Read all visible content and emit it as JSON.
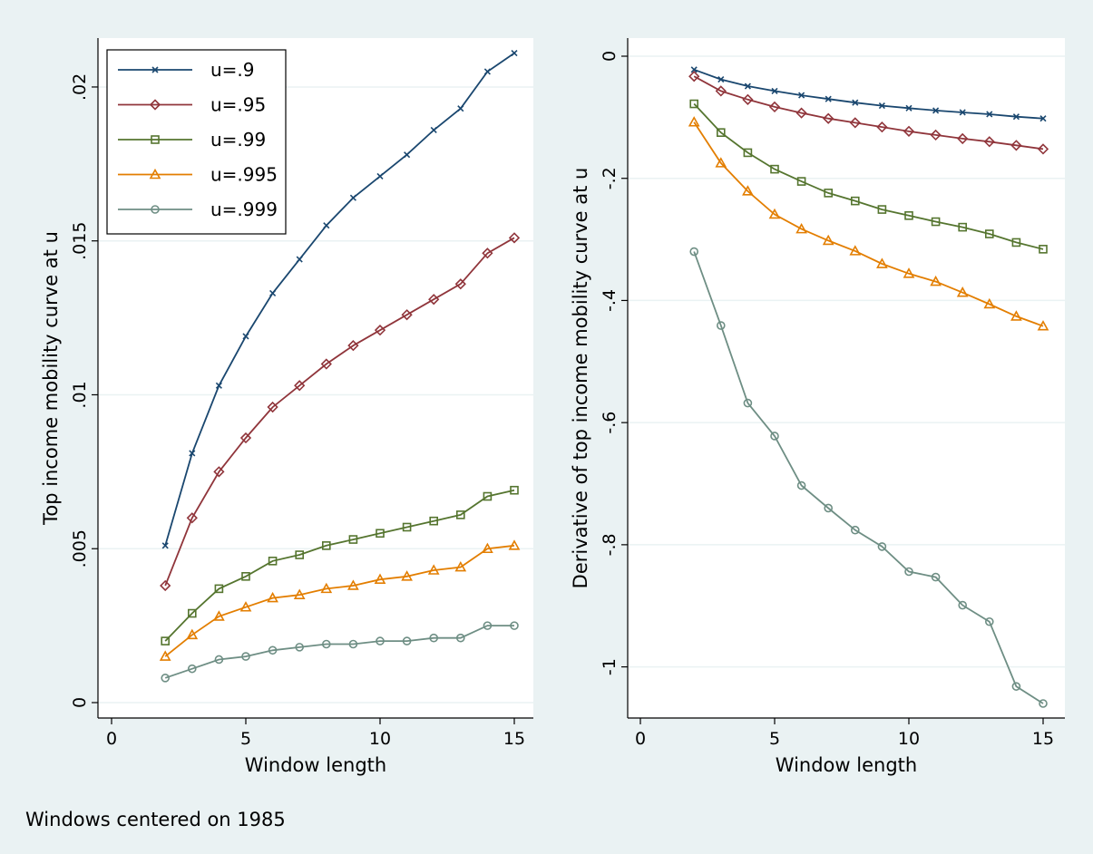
{
  "note": "Windows centered on 1985",
  "colors": {
    "background": "#eaf2f3",
    "plot_background": "#ffffff",
    "grid": "#eaf2f3",
    "u_9": "#1a476f",
    "u_95": "#90353b",
    "u_99": "#55752f",
    "u_995": "#e37e00",
    "u_999": "#6e8e84"
  },
  "chart_data": [
    {
      "type": "line",
      "title": "",
      "xlabel": "Window length",
      "ylabel": "Top income mobility curve at u",
      "xlim": [
        0,
        15
      ],
      "ylim": [
        0,
        0.021
      ],
      "x_ticks": [
        0,
        5,
        10,
        15
      ],
      "y_ticks": [
        0,
        0.005,
        0.01,
        0.015,
        0.02
      ],
      "y_tick_labels": [
        "0",
        ".005",
        ".01",
        ".015",
        ".02"
      ],
      "grid": true,
      "legend": "top-left",
      "x": [
        2,
        3,
        4,
        5,
        6,
        7,
        8,
        9,
        10,
        11,
        12,
        13,
        14,
        15
      ],
      "series": [
        {
          "name": "u=.9",
          "color": "#1a476f",
          "marker": "x",
          "values": [
            0.0051,
            0.0081,
            0.0103,
            0.0119,
            0.0133,
            0.0144,
            0.0155,
            0.0164,
            0.0171,
            0.0178,
            0.0186,
            0.0193,
            0.0205,
            0.0211
          ]
        },
        {
          "name": "u=.95",
          "color": "#90353b",
          "marker": "diamond",
          "values": [
            0.0038,
            0.006,
            0.0075,
            0.0086,
            0.0096,
            0.0103,
            0.011,
            0.0116,
            0.0121,
            0.0126,
            0.0131,
            0.0136,
            0.0146,
            0.0151
          ]
        },
        {
          "name": "u=.99",
          "color": "#55752f",
          "marker": "square",
          "values": [
            0.002,
            0.0029,
            0.0037,
            0.0041,
            0.0046,
            0.0048,
            0.0051,
            0.0053,
            0.0055,
            0.0057,
            0.0059,
            0.0061,
            0.0067,
            0.0069
          ]
        },
        {
          "name": "u=.995",
          "color": "#e37e00",
          "marker": "triangle",
          "values": [
            0.0015,
            0.0022,
            0.0028,
            0.0031,
            0.0034,
            0.0035,
            0.0037,
            0.0038,
            0.004,
            0.0041,
            0.0043,
            0.0044,
            0.005,
            0.0051
          ]
        },
        {
          "name": "u=.999",
          "color": "#6e8e84",
          "marker": "circle",
          "values": [
            0.0008,
            0.0011,
            0.0014,
            0.0015,
            0.0017,
            0.0018,
            0.0019,
            0.0019,
            0.002,
            0.002,
            0.0021,
            0.0021,
            0.0025,
            0.0025
          ]
        }
      ]
    },
    {
      "type": "line",
      "title": "",
      "xlabel": "Window length",
      "ylabel": "Derivative of top income mobility curve at u",
      "xlim": [
        0,
        15
      ],
      "ylim": [
        -1.06,
        0
      ],
      "x_ticks": [
        0,
        5,
        10,
        15
      ],
      "y_ticks": [
        0,
        -0.2,
        -0.4,
        -0.6,
        -0.8,
        -1
      ],
      "y_tick_labels": [
        "0",
        "-.2",
        "-.4",
        "-.6",
        "-.8",
        "-1"
      ],
      "grid": true,
      "x": [
        2,
        3,
        4,
        5,
        6,
        7,
        8,
        9,
        10,
        11,
        12,
        13,
        14,
        15
      ],
      "series": [
        {
          "name": "u=.9",
          "color": "#1a476f",
          "marker": "x",
          "values": [
            -0.022,
            -0.038,
            -0.049,
            -0.057,
            -0.064,
            -0.07,
            -0.076,
            -0.081,
            -0.085,
            -0.089,
            -0.092,
            -0.095,
            -0.099,
            -0.102
          ]
        },
        {
          "name": "u=.95",
          "color": "#90353b",
          "marker": "diamond",
          "values": [
            -0.033,
            -0.057,
            -0.071,
            -0.083,
            -0.093,
            -0.102,
            -0.109,
            -0.116,
            -0.123,
            -0.129,
            -0.135,
            -0.14,
            -0.146,
            -0.152
          ]
        },
        {
          "name": "u=.99",
          "color": "#55752f",
          "marker": "square",
          "values": [
            -0.078,
            -0.125,
            -0.158,
            -0.185,
            -0.205,
            -0.224,
            -0.237,
            -0.251,
            -0.261,
            -0.271,
            -0.28,
            -0.291,
            -0.305,
            -0.316
          ]
        },
        {
          "name": "u=.995",
          "color": "#e37e00",
          "marker": "triangle",
          "values": [
            -0.108,
            -0.175,
            -0.221,
            -0.259,
            -0.283,
            -0.302,
            -0.319,
            -0.34,
            -0.356,
            -0.369,
            -0.387,
            -0.406,
            -0.426,
            -0.442
          ]
        },
        {
          "name": "u=.999",
          "color": "#6e8e84",
          "marker": "circle",
          "values": [
            -0.32,
            -0.441,
            -0.568,
            -0.622,
            -0.703,
            -0.74,
            -0.776,
            -0.803,
            -0.844,
            -0.853,
            -0.899,
            -0.926,
            -1.032,
            -1.06
          ]
        }
      ]
    }
  ]
}
